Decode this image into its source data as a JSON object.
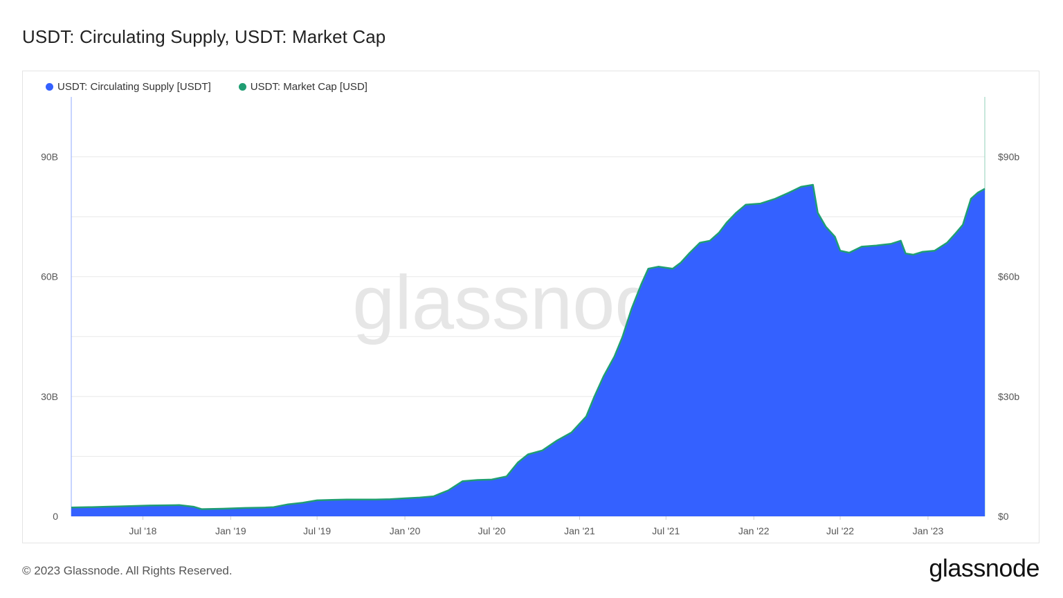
{
  "title": "USDT: Circulating Supply, USDT: Market Cap",
  "watermark": "glassnode",
  "footer": {
    "copyright": "© 2023 Glassnode. All Rights Reserved.",
    "brand": "glassnode"
  },
  "colors": {
    "supply": "#3461ff",
    "market_cap": "#1f9d72",
    "grid": "#e8e8e8",
    "axis_text": "#555555"
  },
  "chart_data": {
    "type": "area",
    "x_axis": {
      "type": "date",
      "range": [
        "2018-02-01",
        "2023-04-30"
      ],
      "ticks": [
        {
          "date": "2018-07-01",
          "label": "Jul '18"
        },
        {
          "date": "2019-01-01",
          "label": "Jan '19"
        },
        {
          "date": "2019-07-01",
          "label": "Jul '19"
        },
        {
          "date": "2020-01-01",
          "label": "Jan '20"
        },
        {
          "date": "2020-07-01",
          "label": "Jul '20"
        },
        {
          "date": "2021-01-01",
          "label": "Jan '21"
        },
        {
          "date": "2021-07-01",
          "label": "Jul '21"
        },
        {
          "date": "2022-01-01",
          "label": "Jan '22"
        },
        {
          "date": "2022-07-01",
          "label": "Jul '22"
        },
        {
          "date": "2023-01-01",
          "label": "Jan '23"
        }
      ]
    },
    "y_left": {
      "range": [
        0,
        105000000000
      ],
      "ticks": [
        {
          "value": 0,
          "label": "0"
        },
        {
          "value": 30000000000,
          "label": "30B"
        },
        {
          "value": 60000000000,
          "label": "60B"
        },
        {
          "value": 90000000000,
          "label": "90B"
        }
      ]
    },
    "y_right": {
      "range": [
        0,
        105000000000
      ],
      "ticks": [
        {
          "value": 0,
          "label": "$0"
        },
        {
          "value": 30000000000,
          "label": "$30b"
        },
        {
          "value": 60000000000,
          "label": "$60b"
        },
        {
          "value": 90000000000,
          "label": "$90b"
        }
      ]
    },
    "gridlines": [
      0,
      15000000000,
      30000000000,
      45000000000,
      60000000000,
      75000000000,
      90000000000
    ],
    "legend_position": "top-left",
    "series": [
      {
        "name": "USDT: Circulating Supply [USDT]",
        "axis": "left",
        "color": "#3461ff",
        "style": "area"
      },
      {
        "name": "USDT: Market Cap [USD]",
        "axis": "right",
        "color": "#1f9d72",
        "style": "line"
      }
    ],
    "points": [
      [
        "2018-02-01",
        2200000000.0
      ],
      [
        "2018-03-15",
        2300000000.0
      ],
      [
        "2018-04-15",
        2400000000.0
      ],
      [
        "2018-05-15",
        2500000000.0
      ],
      [
        "2018-06-15",
        2600000000.0
      ],
      [
        "2018-07-15",
        2700000000.0
      ],
      [
        "2018-08-15",
        2750000000.0
      ],
      [
        "2018-09-15",
        2800000000.0
      ],
      [
        "2018-10-15",
        2400000000.0
      ],
      [
        "2018-11-01",
        1800000000.0
      ],
      [
        "2018-12-15",
        1900000000.0
      ],
      [
        "2019-02-01",
        2100000000.0
      ],
      [
        "2019-03-15",
        2200000000.0
      ],
      [
        "2019-04-01",
        2300000000.0
      ],
      [
        "2019-05-01",
        3000000000.0
      ],
      [
        "2019-06-01",
        3400000000.0
      ],
      [
        "2019-07-01",
        4000000000.0
      ],
      [
        "2019-08-01",
        4100000000.0
      ],
      [
        "2019-09-01",
        4200000000.0
      ],
      [
        "2019-10-01",
        4200000000.0
      ],
      [
        "2019-11-01",
        4200000000.0
      ],
      [
        "2019-12-01",
        4300000000.0
      ],
      [
        "2020-01-01",
        4500000000.0
      ],
      [
        "2020-02-01",
        4700000000.0
      ],
      [
        "2020-03-01",
        5000000000.0
      ],
      [
        "2020-04-01",
        6500000000.0
      ],
      [
        "2020-05-01",
        8800000000.0
      ],
      [
        "2020-06-01",
        9100000000.0
      ],
      [
        "2020-07-01",
        9200000000.0
      ],
      [
        "2020-08-01",
        10000000000.0
      ],
      [
        "2020-08-25",
        13500000000.0
      ],
      [
        "2020-09-15",
        15500000000.0
      ],
      [
        "2020-10-15",
        16500000000.0
      ],
      [
        "2020-11-15",
        19000000000.0
      ],
      [
        "2020-12-15",
        21000000000.0
      ],
      [
        "2021-01-15",
        25000000000.0
      ],
      [
        "2021-02-01",
        30000000000.0
      ],
      [
        "2021-02-20",
        35000000000.0
      ],
      [
        "2021-03-15",
        40000000000.0
      ],
      [
        "2021-04-01",
        45000000000.0
      ],
      [
        "2021-04-20",
        52000000000.0
      ],
      [
        "2021-05-10",
        58000000000.0
      ],
      [
        "2021-05-25",
        62000000000.0
      ],
      [
        "2021-06-15",
        62500000000.0
      ],
      [
        "2021-07-15",
        62000000000.0
      ],
      [
        "2021-08-01",
        63500000000.0
      ],
      [
        "2021-08-20",
        66000000000.0
      ],
      [
        "2021-09-10",
        68500000000.0
      ],
      [
        "2021-10-01",
        69000000000.0
      ],
      [
        "2021-10-20",
        71000000000.0
      ],
      [
        "2021-11-05",
        73500000000.0
      ],
      [
        "2021-11-25",
        76000000000.0
      ],
      [
        "2021-12-15",
        78000000000.0
      ],
      [
        "2022-01-15",
        78300000000.0
      ],
      [
        "2022-02-15",
        79500000000.0
      ],
      [
        "2022-03-15",
        81000000000.0
      ],
      [
        "2022-04-10",
        82500000000.0
      ],
      [
        "2022-05-05",
        83000000000.0
      ],
      [
        "2022-05-15",
        76000000000.0
      ],
      [
        "2022-06-01",
        72500000000.0
      ],
      [
        "2022-06-20",
        70000000000.0
      ],
      [
        "2022-07-01",
        66500000000.0
      ],
      [
        "2022-07-20",
        66000000000.0
      ],
      [
        "2022-08-15",
        67500000000.0
      ],
      [
        "2022-09-15",
        67800000000.0
      ],
      [
        "2022-10-15",
        68200000000.0
      ],
      [
        "2022-11-05",
        69000000000.0
      ],
      [
        "2022-11-15",
        65800000000.0
      ],
      [
        "2022-12-01",
        65500000000.0
      ],
      [
        "2022-12-20",
        66200000000.0
      ],
      [
        "2023-01-15",
        66500000000.0
      ],
      [
        "2023-02-10",
        68500000000.0
      ],
      [
        "2023-03-01",
        71000000000.0
      ],
      [
        "2023-03-15",
        73000000000.0
      ],
      [
        "2023-04-01",
        79500000000.0
      ],
      [
        "2023-04-15",
        81000000000.0
      ],
      [
        "2023-04-30",
        82000000000.0
      ]
    ]
  }
}
